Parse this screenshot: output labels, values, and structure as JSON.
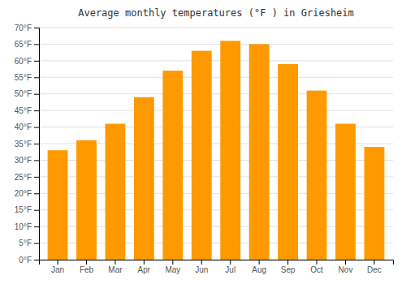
{
  "chart_data": {
    "type": "bar",
    "title": "Average monthly temperatures (°F ) in Griesheim",
    "categories": [
      "Jan",
      "Feb",
      "Mar",
      "Apr",
      "May",
      "Jun",
      "Jul",
      "Aug",
      "Sep",
      "Oct",
      "Nov",
      "Dec"
    ],
    "values": [
      33,
      36,
      41,
      49,
      57,
      63,
      66,
      65,
      59,
      51,
      41,
      34
    ],
    "color": "#FF9900",
    "ylim": [
      0,
      70
    ],
    "yticks": [
      {
        "value": 0,
        "label": "0°F"
      },
      {
        "value": 5,
        "label": "5°F"
      },
      {
        "value": 10,
        "label": "10°F"
      },
      {
        "value": 15,
        "label": "15°F"
      },
      {
        "value": 20,
        "label": "20°F"
      },
      {
        "value": 25,
        "label": "25°F"
      },
      {
        "value": 30,
        "label": "30°F"
      },
      {
        "value": 35,
        "label": "35°F"
      },
      {
        "value": 40,
        "label": "40°F"
      },
      {
        "value": 45,
        "label": "45°F"
      },
      {
        "value": 50,
        "label": "50°F"
      },
      {
        "value": 55,
        "label": "55°F"
      },
      {
        "value": 60,
        "label": "60°F"
      },
      {
        "value": 65,
        "label": "65°F"
      },
      {
        "value": 70,
        "label": "70°F"
      }
    ],
    "grid": true
  }
}
